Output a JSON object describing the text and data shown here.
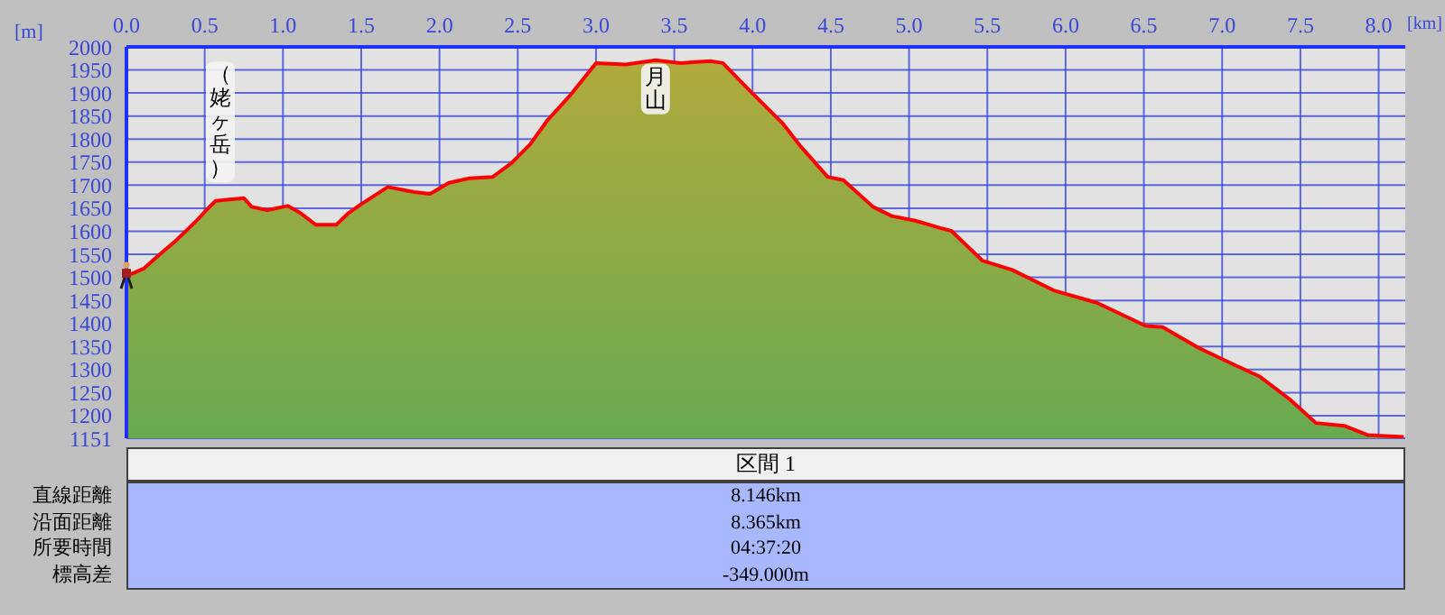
{
  "chart_data": {
    "type": "area",
    "xlabel": "[km]",
    "ylabel": "[m]",
    "x": [
      0,
      0.11,
      0.21,
      0.32,
      0.46,
      0.51,
      0.57,
      0.75,
      0.8,
      0.9,
      1.03,
      1.11,
      1.21,
      1.34,
      1.42,
      1.5,
      1.67,
      1.84,
      1.94,
      2.06,
      2.19,
      2.34,
      2.46,
      2.58,
      2.69,
      2.83,
      3.0,
      3.19,
      3.38,
      3.54,
      3.73,
      3.81,
      3.98,
      4.19,
      4.31,
      4.48,
      4.58,
      4.77,
      4.89,
      5.04,
      5.2,
      5.27,
      5.47,
      5.66,
      5.93,
      6.2,
      6.51,
      6.62,
      6.85,
      7.08,
      7.24,
      7.43,
      7.6,
      7.78,
      7.93,
      8.16
    ],
    "series": [
      {
        "color": "#ff0000",
        "values": [
          1503,
          1519,
          1549,
          1581,
          1627,
          1646,
          1666,
          1672,
          1653,
          1646,
          1655,
          1640,
          1614,
          1614,
          1640,
          1659,
          1696,
          1685,
          1681,
          1705,
          1715,
          1718,
          1748,
          1789,
          1841,
          1893,
          1965,
          1962,
          1971,
          1965,
          1969,
          1965,
          1906,
          1835,
          1783,
          1718,
          1711,
          1653,
          1633,
          1623,
          1607,
          1601,
          1536,
          1516,
          1471,
          1445,
          1395,
          1392,
          1347,
          1310,
          1285,
          1236,
          1184,
          1178,
          1158,
          1154
        ]
      }
    ],
    "xlim": [
      0,
      8.17
    ],
    "ylim": [
      1151,
      2000
    ],
    "xticks": [
      {
        "value": 0,
        "label": "0.0"
      },
      {
        "value": 0.5,
        "label": "0.5"
      },
      {
        "value": 1,
        "label": "1.0"
      },
      {
        "value": 1.5,
        "label": "1.5"
      },
      {
        "value": 2,
        "label": "2.0"
      },
      {
        "value": 2.5,
        "label": "2.5"
      },
      {
        "value": 3,
        "label": "3.0"
      },
      {
        "value": 3.5,
        "label": "3.5"
      },
      {
        "value": 4,
        "label": "4.0"
      },
      {
        "value": 4.5,
        "label": "4.5"
      },
      {
        "value": 5,
        "label": "5.0"
      },
      {
        "value": 5.5,
        "label": "5.5"
      },
      {
        "value": 6,
        "label": "6.0"
      },
      {
        "value": 6.5,
        "label": "6.5"
      },
      {
        "value": 7,
        "label": "7.0"
      },
      {
        "value": 7.5,
        "label": "7.5"
      },
      {
        "value": 8,
        "label": "8.0"
      }
    ],
    "yticks": [
      1151,
      1200,
      1250,
      1300,
      1350,
      1400,
      1450,
      1500,
      1550,
      1600,
      1650,
      1700,
      1750,
      1800,
      1850,
      1900,
      1950,
      2000
    ],
    "grid": true,
    "annotations": [
      {
        "text": "（姥ヶ岳）",
        "x": 0.6,
        "y": 1667
      },
      {
        "text": "月山",
        "x": 3.38,
        "y": 1971
      },
      "区間 1",
      "直線距離",
      "8.146km",
      "沿面距離",
      "8.365km",
      "所要時間",
      "04:37:20",
      "標高差",
      "-349.000m"
    ]
  }
}
